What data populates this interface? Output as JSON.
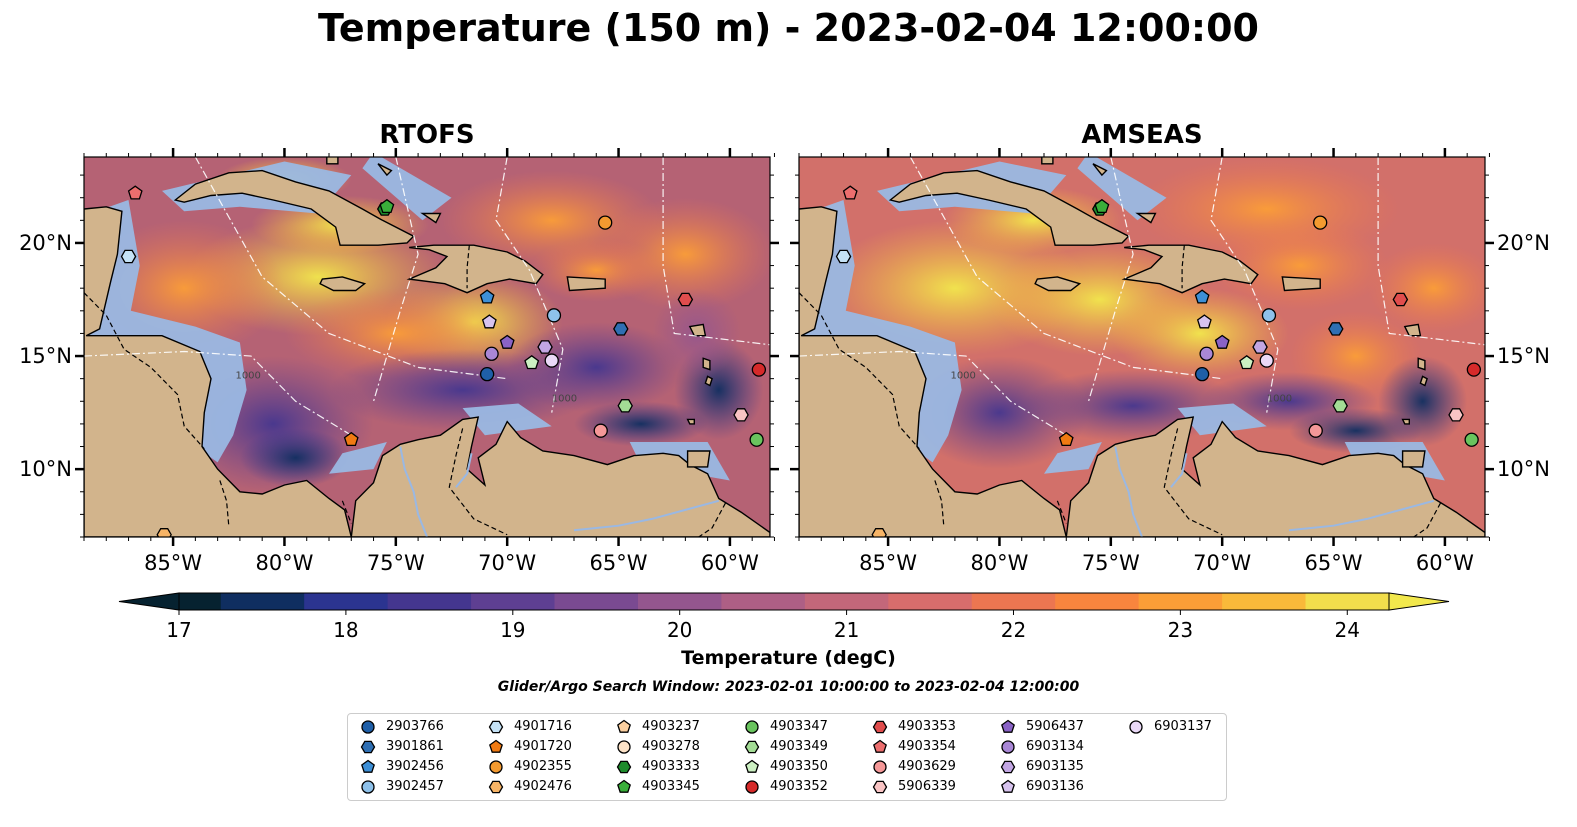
{
  "title": "Temperature (150 m) - 2023-02-04 12:00:00",
  "panels": [
    {
      "title": "RTOFS"
    },
    {
      "title": "AMSEAS"
    }
  ],
  "map": {
    "lon_labels": [
      "85°W",
      "80°W",
      "75°W",
      "70°W",
      "65°W",
      "60°W"
    ],
    "lat_labels": [
      "20°N",
      "15°N",
      "10°N"
    ],
    "contour_label": "1000",
    "colors": {
      "land": "#d2b48c",
      "shelf": "#9ab8e3",
      "deep": "#0c2233"
    }
  },
  "colorbar": {
    "ticks": [
      "17",
      "18",
      "19",
      "20",
      "21",
      "22",
      "23",
      "24"
    ],
    "min": 16.75,
    "max": 24.5,
    "colors": [
      "#062230",
      "#0f2e60",
      "#2b3490",
      "#44368f",
      "#5e3f92",
      "#7a4a91",
      "#94568e",
      "#ae5f85",
      "#c3677a",
      "#d86d6c",
      "#ec7651",
      "#f8853e",
      "#fb9e37",
      "#f9b93a",
      "#f2de4c"
    ],
    "label": "Temperature (degC)"
  },
  "search_window": "Glider/Argo Search Window: 2023-02-01 10:00:00 to 2023-02-04 12:00:00",
  "legend": [
    {
      "id": "2903766",
      "shape": "circle",
      "color": "#1f5fa8"
    },
    {
      "id": "3901861",
      "shape": "hexagon",
      "color": "#2f6fb3"
    },
    {
      "id": "3902456",
      "shape": "pentagon",
      "color": "#3d8fd6"
    },
    {
      "id": "3902457",
      "shape": "circle",
      "color": "#8ec1ea"
    },
    {
      "id": "4901716",
      "shape": "hexagon",
      "color": "#c5e2f6"
    },
    {
      "id": "4901720",
      "shape": "pentagon",
      "color": "#f07a12"
    },
    {
      "id": "4902355",
      "shape": "circle",
      "color": "#f39a30"
    },
    {
      "id": "4902476",
      "shape": "hexagon",
      "color": "#f7b466"
    },
    {
      "id": "4903237",
      "shape": "pentagon",
      "color": "#fbcfa0"
    },
    {
      "id": "4903278",
      "shape": "circle",
      "color": "#fde3c8"
    },
    {
      "id": "4903333",
      "shape": "hexagon",
      "color": "#1e8b2c"
    },
    {
      "id": "4903345",
      "shape": "pentagon",
      "color": "#3aae3a"
    },
    {
      "id": "4903347",
      "shape": "circle",
      "color": "#69c45e"
    },
    {
      "id": "4903349",
      "shape": "hexagon",
      "color": "#a3dc95"
    },
    {
      "id": "4903350",
      "shape": "pentagon",
      "color": "#ccf0c2"
    },
    {
      "id": "4903352",
      "shape": "circle",
      "color": "#d62a2a"
    },
    {
      "id": "4903353",
      "shape": "hexagon",
      "color": "#e04d4d"
    },
    {
      "id": "4903354",
      "shape": "pentagon",
      "color": "#ec6e6e"
    },
    {
      "id": "4903629",
      "shape": "circle",
      "color": "#f59898"
    },
    {
      "id": "5906339",
      "shape": "hexagon",
      "color": "#f9c4c4"
    },
    {
      "id": "5906437",
      "shape": "pentagon",
      "color": "#8a63c6"
    },
    {
      "id": "6903134",
      "shape": "circle",
      "color": "#a987d6"
    },
    {
      "id": "6903135",
      "shape": "hexagon",
      "color": "#c2a6e3"
    },
    {
      "id": "6903136",
      "shape": "pentagon",
      "color": "#d7c3ee"
    },
    {
      "id": "6903137",
      "shape": "circle",
      "color": "#ead9f7"
    }
  ],
  "floats": [
    {
      "id": "2903766",
      "lon": -70.9,
      "lat": 14.2
    },
    {
      "id": "3901861",
      "lon": -64.9,
      "lat": 16.2
    },
    {
      "id": "3902456",
      "lon": -70.9,
      "lat": 17.6
    },
    {
      "id": "3902457",
      "lon": -67.9,
      "lat": 16.8
    },
    {
      "id": "4901716",
      "lon": -87.0,
      "lat": 19.4
    },
    {
      "id": "4901720",
      "lon": -77.0,
      "lat": 11.3
    },
    {
      "id": "4902355",
      "lon": -65.6,
      "lat": 20.9
    },
    {
      "id": "4902476",
      "lon": -85.4,
      "lat": 7.1
    },
    {
      "id": "4903333",
      "lon": -75.5,
      "lat": 21.5
    },
    {
      "id": "4903345",
      "lon": -75.4,
      "lat": 21.6
    },
    {
      "id": "4903347",
      "lon": -58.8,
      "lat": 11.3
    },
    {
      "id": "4903349",
      "lon": -64.7,
      "lat": 12.8
    },
    {
      "id": "4903350",
      "lon": -68.9,
      "lat": 14.7
    },
    {
      "id": "4903352",
      "lon": -58.7,
      "lat": 14.4
    },
    {
      "id": "4903353",
      "lon": -62.0,
      "lat": 17.5
    },
    {
      "id": "4903354",
      "lon": -86.7,
      "lat": 22.2
    },
    {
      "id": "4903629",
      "lon": -65.8,
      "lat": 11.7
    },
    {
      "id": "5906339",
      "lon": -59.5,
      "lat": 12.4
    },
    {
      "id": "5906437",
      "lon": -70.0,
      "lat": 15.6
    },
    {
      "id": "6903134",
      "lon": -70.7,
      "lat": 15.1
    },
    {
      "id": "6903135",
      "lon": -68.3,
      "lat": 15.4
    },
    {
      "id": "6903136",
      "lon": -70.8,
      "lat": 16.5
    },
    {
      "id": "6903137",
      "lon": -68.0,
      "lat": 14.8
    }
  ]
}
